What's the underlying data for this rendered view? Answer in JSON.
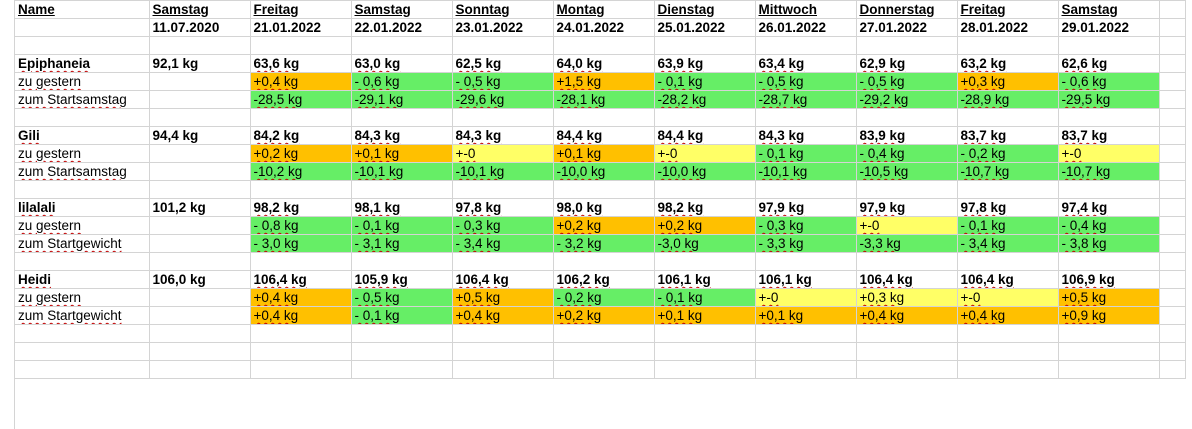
{
  "colors": {
    "green": "#66ee66",
    "orange": "#ffc000",
    "yellow": "#ffff66",
    "grid": "#d4d4d4"
  },
  "header": {
    "name_label": "Name",
    "days": [
      "Samstag",
      "Freitag",
      "Samstag",
      "Sonntag",
      "Montag",
      "Dienstag",
      "Mittwoch",
      "Donnerstag",
      "Freitag",
      "Samstag"
    ],
    "dates": [
      "11.07.2020",
      "21.01.2022",
      "22.01.2022",
      "23.01.2022",
      "24.01.2022",
      "25.01.2022",
      "26.01.2022",
      "27.01.2022",
      "28.01.2022",
      "29.01.2022"
    ]
  },
  "people": [
    {
      "name": "Epiphaneia",
      "start": "92,1 kg",
      "weights": [
        "63,6 kg",
        "63,0 kg",
        "62,5 kg",
        "64,0 kg",
        "63,9 kg",
        "63,4 kg",
        "62,9 kg",
        "63,2 kg",
        "62,6 kg"
      ],
      "row2_label": "zu gestern",
      "row2": [
        "+0,4 kg",
        "- 0,6 kg",
        "- 0,5 kg",
        "+1,5 kg",
        "- 0,1 kg",
        "- 0,5 kg",
        "- 0,5 kg",
        "+0,3 kg",
        "- 0,6 kg"
      ],
      "row2_colors": [
        "orange",
        "green",
        "green",
        "orange",
        "green",
        "green",
        "green",
        "orange",
        "green"
      ],
      "row3_label": "zum Startsamstag",
      "row3": [
        "-28,5 kg",
        "-29,1 kg",
        "-29,6 kg",
        "-28,1 kg",
        "-28,2 kg",
        "-28,7 kg",
        "-29,2 kg",
        "-28,9 kg",
        "-29,5 kg"
      ],
      "row3_colors": [
        "green",
        "green",
        "green",
        "green",
        "green",
        "green",
        "green",
        "green",
        "green"
      ]
    },
    {
      "name": "Gili",
      "start": "94,4 kg",
      "weights": [
        "84,2 kg",
        "84,3 kg",
        "84,3 kg",
        "84,4 kg",
        "84,4 kg",
        "84,3 kg",
        "83,9 kg",
        "83,7 kg",
        "83,7 kg"
      ],
      "row2_label": "zu gestern",
      "row2": [
        "+0,2 kg",
        "+0,1 kg",
        "+-0",
        "+0,1 kg",
        "+-0",
        "- 0,1 kg",
        "- 0,4 kg",
        "- 0,2 kg",
        "+-0"
      ],
      "row2_colors": [
        "orange",
        "orange",
        "yellow",
        "orange",
        "yellow",
        "green",
        "green",
        "green",
        "yellow"
      ],
      "row3_label": "zum Startsamstag",
      "row3": [
        "-10,2 kg",
        "-10,1 kg",
        "-10,1 kg",
        "-10,0 kg",
        "-10,0 kg",
        "-10,1 kg",
        "-10,5 kg",
        "-10,7 kg",
        "-10,7 kg"
      ],
      "row3_colors": [
        "green",
        "green",
        "green",
        "green",
        "green",
        "green",
        "green",
        "green",
        "green"
      ]
    },
    {
      "name": "lilalali",
      "start": "101,2 kg",
      "weights": [
        "98,2 kg",
        "98,1 kg",
        "97,8 kg",
        "98,0 kg",
        "98,2 kg",
        "97,9 kg",
        "97,9 kg",
        "97,8 kg",
        "97,4 kg"
      ],
      "row2_label": "zu gestern",
      "row2": [
        "- 0,8 kg",
        "- 0,1 kg",
        "- 0,3 kg",
        "+0,2 kg",
        "+0,2 kg",
        "- 0,3 kg",
        "+-0",
        "- 0,1 kg",
        "- 0,4 kg"
      ],
      "row2_colors": [
        "green",
        "green",
        "green",
        "orange",
        "orange",
        "green",
        "yellow",
        "green",
        "green"
      ],
      "row3_label": "zum Startgewicht",
      "row3": [
        "- 3,0 kg",
        "- 3,1 kg",
        "- 3,4 kg",
        "- 3,2 kg",
        "-3,0 kg",
        "- 3,3 kg",
        "-3,3 kg",
        "- 3,4 kg",
        "- 3,8 kg"
      ],
      "row3_colors": [
        "green",
        "green",
        "green",
        "green",
        "green",
        "green",
        "green",
        "green",
        "green"
      ]
    },
    {
      "name": "Heidi",
      "start": "106,0 kg",
      "weights": [
        "106,4 kg",
        "105,9 kg",
        "106,4 kg",
        "106,2 kg",
        "106,1 kg",
        "106,1 kg",
        "106,4 kg",
        "106,4 kg",
        "106,9 kg"
      ],
      "row2_label": "zu gestern",
      "row2": [
        "+0,4 kg",
        "- 0,5 kg",
        "+0,5 kg",
        "- 0,2 kg",
        "- 0,1 kg",
        "+-0",
        "+0,3 kg",
        "+-0",
        "+0,5 kg"
      ],
      "row2_colors": [
        "orange",
        "green",
        "orange",
        "green",
        "green",
        "yellow",
        "yellow",
        "yellow",
        "orange"
      ],
      "row3_label": "zum Startgewicht",
      "row3": [
        "+0,4 kg",
        "- 0,1 kg",
        "+0,4 kg",
        "+0,2 kg",
        "+0,1 kg",
        "+0,1 kg",
        "+0,4 kg",
        "+0,4 kg",
        "+0,9 kg"
      ],
      "row3_colors": [
        "orange",
        "green",
        "orange",
        "orange",
        "orange",
        "orange",
        "orange",
        "orange",
        "orange"
      ]
    }
  ]
}
